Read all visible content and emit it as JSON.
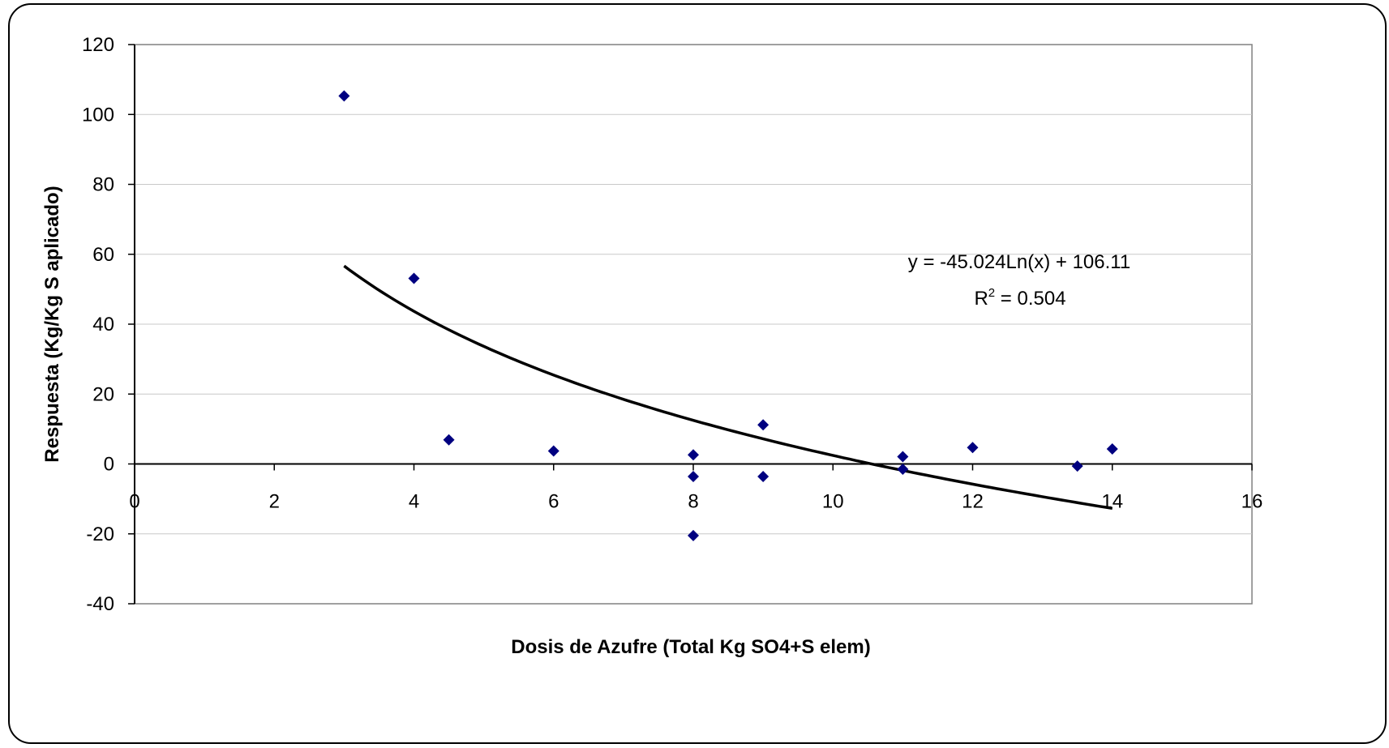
{
  "chart_data": {
    "type": "scatter",
    "title": "",
    "xlabel": "Dosis de Azufre (Total Kg SO4+S elem)",
    "ylabel": "Respuesta (Kg/Kg S aplicado)",
    "xlim": [
      0,
      16
    ],
    "ylim": [
      -40,
      120
    ],
    "xticks": [
      0,
      2,
      4,
      6,
      8,
      10,
      12,
      14,
      16
    ],
    "yticks": [
      -40,
      -20,
      0,
      20,
      40,
      60,
      80,
      100,
      120
    ],
    "grid": "horizontal",
    "legend": "none",
    "marker_color": "#000080",
    "trendline_color": "#000000",
    "series": [
      {
        "marker": "diamond",
        "points": [
          {
            "x": 3,
            "y": 105.3
          },
          {
            "x": 4,
            "y": 53.1
          },
          {
            "x": 4.5,
            "y": 6.9
          },
          {
            "x": 6,
            "y": 3.7
          },
          {
            "x": 8,
            "y": 2.6
          },
          {
            "x": 8,
            "y": -3.6
          },
          {
            "x": 8,
            "y": -20.5
          },
          {
            "x": 9,
            "y": 11.2
          },
          {
            "x": 9,
            "y": -3.6
          },
          {
            "x": 11,
            "y": 2.1
          },
          {
            "x": 11,
            "y": -1.5
          },
          {
            "x": 12,
            "y": 4.7
          },
          {
            "x": 13.5,
            "y": -0.6
          },
          {
            "x": 14,
            "y": 4.3
          }
        ]
      }
    ],
    "trendline": {
      "type": "logarithmic",
      "a": -45.024,
      "b": 106.11,
      "x_range": [
        3,
        14
      ],
      "equation_line": "y = -45.024Ln(x) + 106.11",
      "r2_prefix": "R",
      "r2_superscript": "2",
      "r2_rest": " = 0.504"
    }
  }
}
